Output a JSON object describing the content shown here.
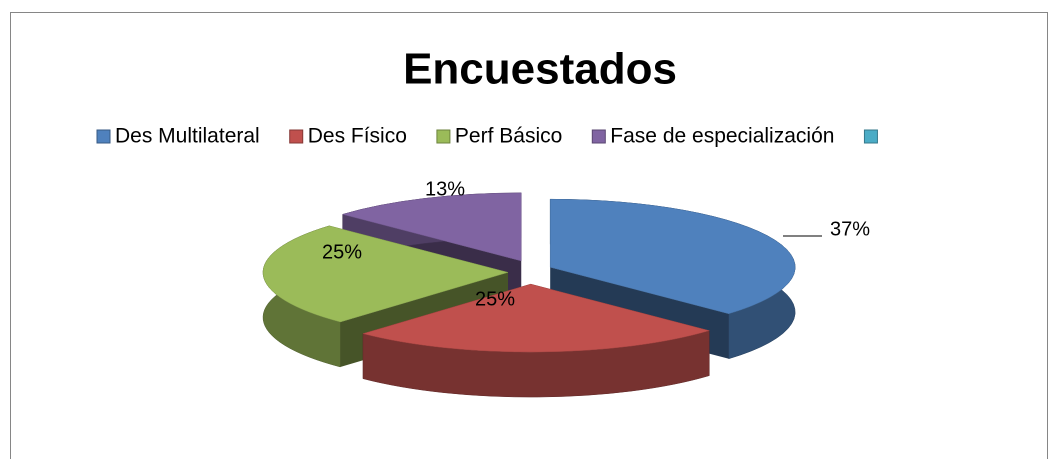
{
  "chart_data": {
    "type": "pie3d",
    "title": "Encuestados",
    "categories": [
      "Des Multilateral",
      "Des Físico",
      "Perf Básico",
      "Fase de especialización",
      null
    ],
    "values": [
      37,
      25,
      25,
      13,
      0
    ],
    "value_labels": [
      "37%",
      "25%",
      "25%",
      "13%",
      null
    ],
    "colors": [
      "#4f81bd",
      "#c0504d",
      "#9bbb59",
      "#8064a2",
      "#4bacc6"
    ],
    "legend": "top"
  }
}
